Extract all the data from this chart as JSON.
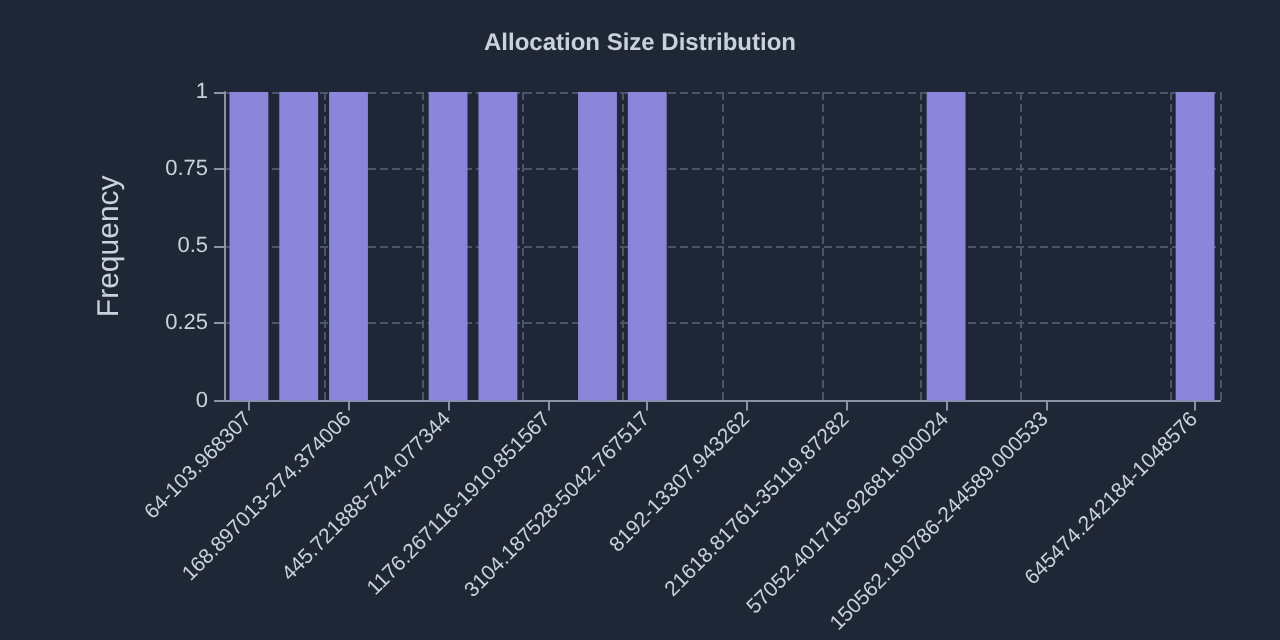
{
  "chart_data": {
    "type": "bar",
    "title": "Allocation Size Distribution",
    "ylabel": "Frequency",
    "categories": [
      "64-103.968307",
      null,
      "168.897013-274.374006",
      null,
      "445.721888-724.077344",
      null,
      "1176.267116-1910.851567",
      null,
      "3104.187528-5042.767517",
      null,
      "8192-13307.943262",
      null,
      "21618.81761-35119.87282",
      null,
      "57052.401716-92681.900024",
      null,
      "150562.190786-244589.000533",
      null,
      null,
      "645474.242184-1048576"
    ],
    "values": [
      1,
      1,
      1,
      0,
      1,
      1,
      0,
      1,
      1,
      0,
      0,
      0,
      0,
      0,
      1,
      0,
      0,
      0,
      0,
      1
    ],
    "color": "#8b86d9",
    "ylim": [
      0,
      1
    ],
    "yticks": [
      0,
      0.25,
      0.5,
      0.75,
      1
    ],
    "grid": true
  }
}
